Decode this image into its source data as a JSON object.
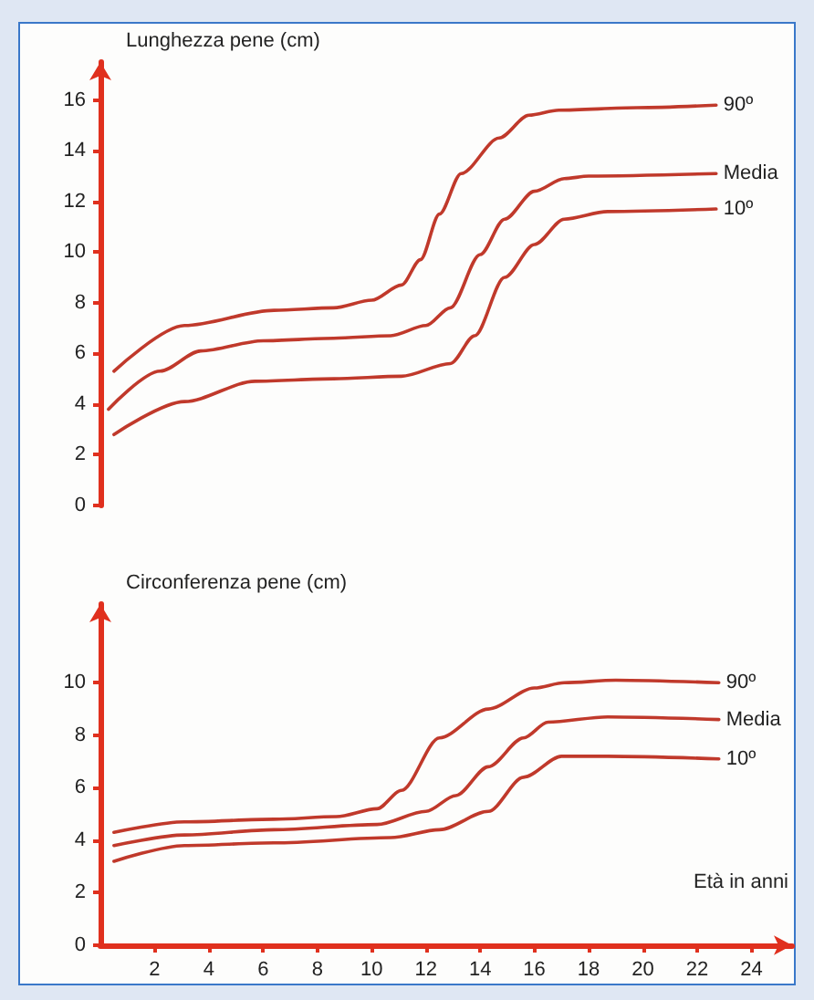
{
  "chart_data": [
    {
      "type": "line",
      "ylabel": "Lunghezza pene (cm)",
      "xlim": [
        0,
        25.5
      ],
      "ylim": [
        0,
        17.5
      ],
      "yticks": [
        0,
        2,
        4,
        6,
        8,
        10,
        12,
        14,
        16
      ],
      "tick_labels": "y",
      "series": [
        {
          "name": "90º",
          "color": "#c0392b",
          "x": [
            0.5,
            3.1,
            6.4,
            8.6,
            10,
            11.1,
            11.8,
            12.5,
            13.3,
            14.7,
            15.8,
            16.9,
            19.8,
            22.7
          ],
          "values": [
            5.3,
            7.1,
            7.7,
            7.8,
            8.1,
            8.7,
            9.7,
            11.5,
            13.1,
            14.5,
            15.4,
            15.6,
            15.7,
            15.8
          ]
        },
        {
          "name": "Media",
          "color": "#c0392b",
          "x": [
            0.3,
            2.2,
            3.7,
            6.0,
            8.6,
            10.7,
            12.0,
            12.9,
            14.0,
            14.9,
            16.0,
            17.1,
            18.0,
            22.7
          ],
          "values": [
            3.8,
            5.3,
            6.1,
            6.5,
            6.6,
            6.7,
            7.1,
            7.8,
            9.9,
            11.3,
            12.4,
            12.9,
            13.0,
            13.1
          ]
        },
        {
          "name": "10º",
          "color": "#c0392b",
          "x": [
            0.5,
            3.1,
            5.7,
            8.6,
            11.1,
            12.9,
            13.8,
            14.9,
            16.0,
            17.1,
            18.7,
            22.7
          ],
          "values": [
            2.8,
            4.1,
            4.9,
            5.0,
            5.1,
            5.6,
            6.7,
            9.0,
            10.3,
            11.3,
            11.6,
            11.7
          ]
        }
      ]
    },
    {
      "type": "line",
      "ylabel": "Circonferenza pene (cm)",
      "xlabel": "Età in anni",
      "xlim": [
        0,
        25.5
      ],
      "xticks": [
        2,
        4,
        6,
        8,
        10,
        12,
        14,
        16,
        18,
        20,
        22,
        24
      ],
      "ylim": [
        0,
        13
      ],
      "yticks": [
        0,
        2,
        4,
        6,
        8,
        10
      ],
      "series": [
        {
          "name": "90º",
          "color": "#c0392b",
          "x": [
            0.5,
            3.1,
            6.4,
            8.7,
            10.2,
            11.1,
            12.5,
            14.3,
            16.0,
            17.1,
            19.0,
            22.8
          ],
          "values": [
            4.3,
            4.7,
            4.8,
            4.9,
            5.2,
            5.9,
            7.9,
            9.0,
            9.8,
            10.0,
            10.1,
            10.0
          ]
        },
        {
          "name": "Media",
          "color": "#c0392b",
          "x": [
            0.5,
            3.1,
            6.4,
            10.2,
            12.0,
            13.1,
            14.3,
            15.6,
            16.5,
            18.7,
            22.8
          ],
          "values": [
            3.8,
            4.2,
            4.4,
            4.6,
            5.1,
            5.7,
            6.8,
            7.9,
            8.5,
            8.7,
            8.6
          ]
        },
        {
          "name": "10º",
          "color": "#c0392b",
          "x": [
            0.5,
            3.1,
            6.4,
            10.7,
            12.5,
            14.3,
            15.6,
            17.0,
            18.7,
            22.8
          ],
          "values": [
            3.2,
            3.8,
            3.9,
            4.1,
            4.4,
            5.1,
            6.4,
            7.2,
            7.2,
            7.1
          ]
        }
      ]
    }
  ]
}
